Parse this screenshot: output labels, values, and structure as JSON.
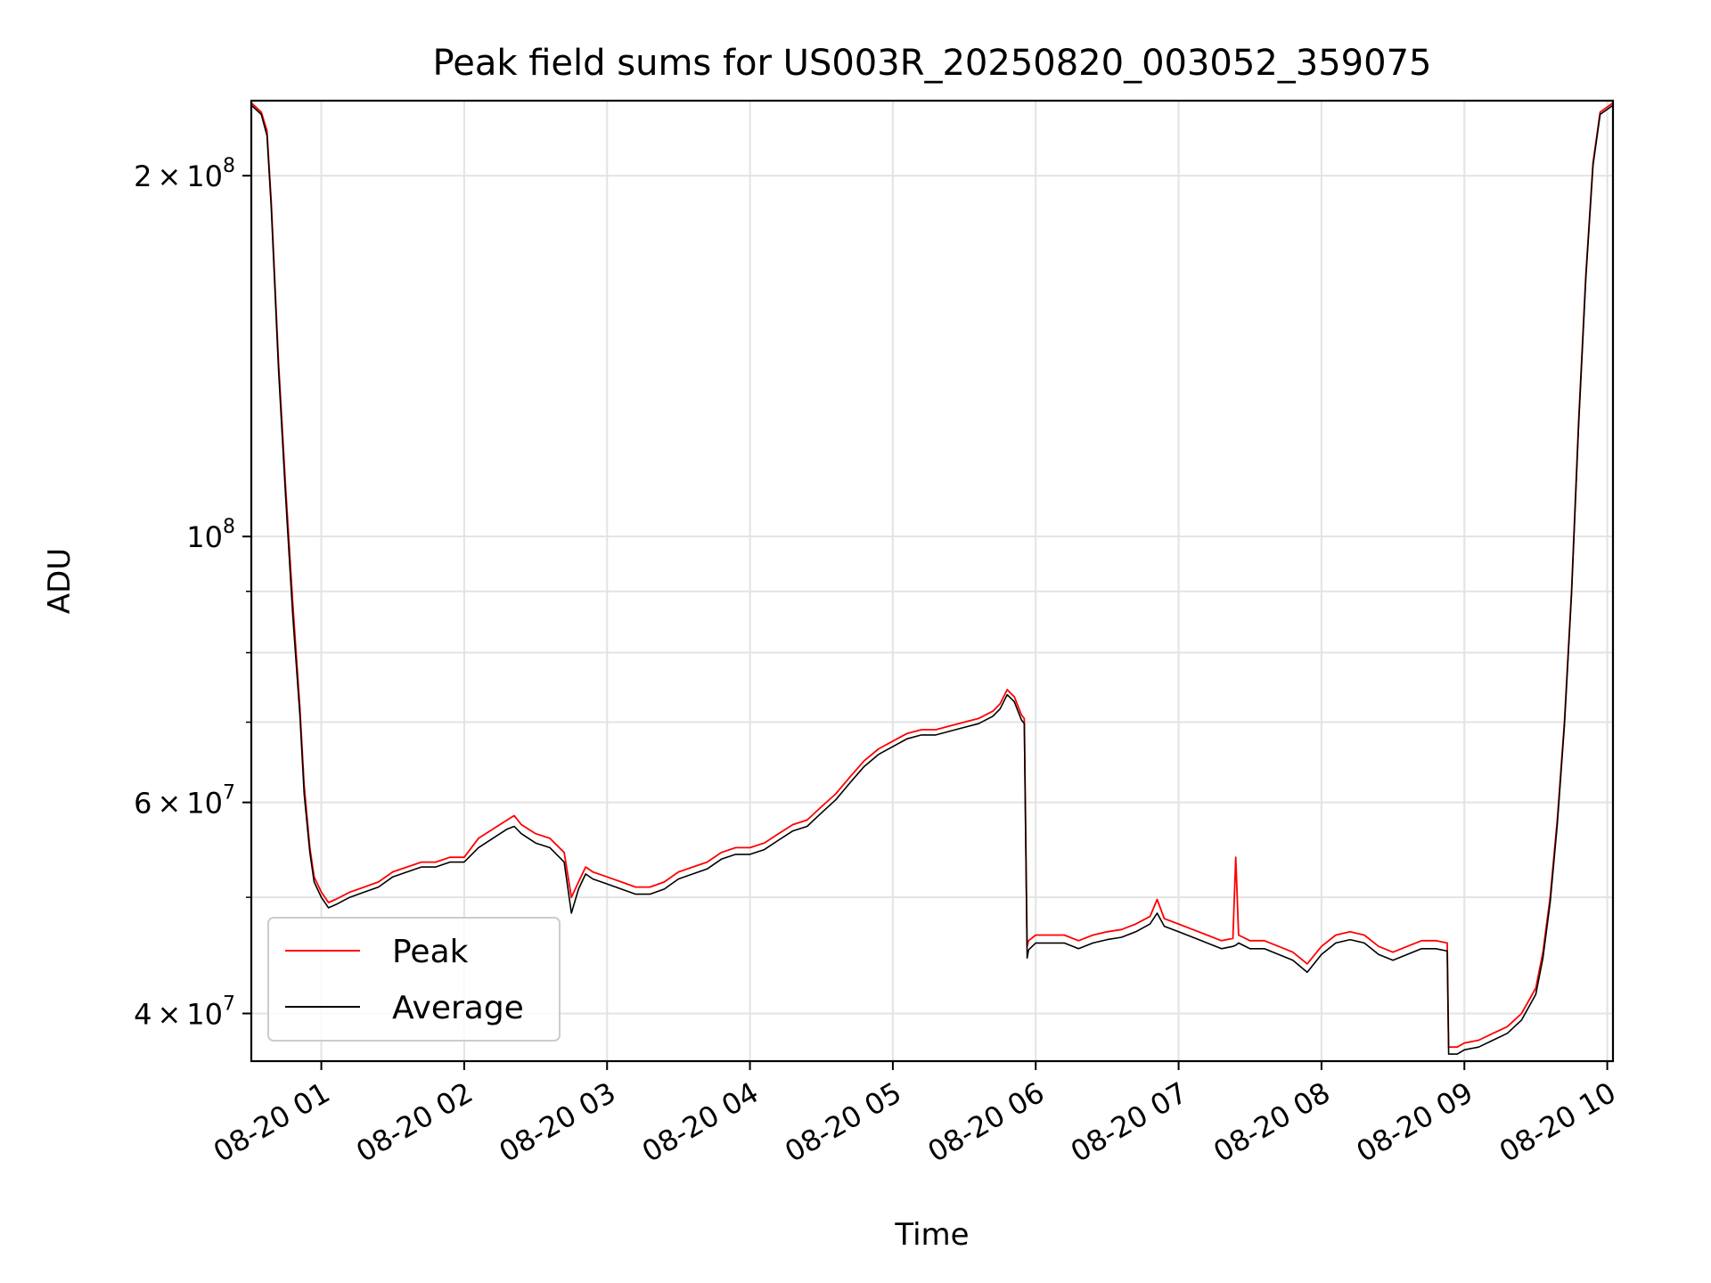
{
  "chart_data": {
    "type": "line",
    "title": "Peak field sums for US003R_20250820_003052_359075",
    "xlabel": "Time",
    "ylabel": "ADU",
    "x_unit": "hour of day on 2025-08-20",
    "xlim": [
      0.51,
      10.04
    ],
    "ylim": [
      36500000,
      231000000
    ],
    "y_scale": "log",
    "grid": true,
    "legend_position": "lower-left",
    "x_ticks": [
      {
        "value": 1,
        "label": "08-20 01"
      },
      {
        "value": 2,
        "label": "08-20 02"
      },
      {
        "value": 3,
        "label": "08-20 03"
      },
      {
        "value": 4,
        "label": "08-20 04"
      },
      {
        "value": 5,
        "label": "08-20 05"
      },
      {
        "value": 6,
        "label": "08-20 06"
      },
      {
        "value": 7,
        "label": "08-20 07"
      },
      {
        "value": 8,
        "label": "08-20 08"
      },
      {
        "value": 9,
        "label": "08-20 09"
      },
      {
        "value": 10,
        "label": "08-20 10"
      }
    ],
    "y_ticks": [
      {
        "value": 40000000,
        "base": "4",
        "exp": "7"
      },
      {
        "value": 60000000,
        "base": "6",
        "exp": "7"
      },
      {
        "value": 100000000,
        "base": "",
        "exp": "8"
      },
      {
        "value": 200000000,
        "base": "2",
        "exp": "8"
      }
    ],
    "y_minor_ticks": [
      50000000,
      70000000,
      80000000,
      90000000
    ],
    "series": [
      {
        "name": "Peak",
        "color": "#ff0000",
        "x": [
          0.51,
          0.58,
          0.62,
          0.65,
          0.7,
          0.75,
          0.8,
          0.85,
          0.88,
          0.92,
          0.95,
          1.0,
          1.05,
          1.1,
          1.2,
          1.3,
          1.4,
          1.5,
          1.6,
          1.7,
          1.8,
          1.9,
          2.0,
          2.1,
          2.2,
          2.3,
          2.35,
          2.4,
          2.5,
          2.6,
          2.7,
          2.75,
          2.8,
          2.85,
          2.9,
          3.0,
          3.1,
          3.2,
          3.3,
          3.4,
          3.5,
          3.6,
          3.7,
          3.8,
          3.9,
          4.0,
          4.1,
          4.2,
          4.3,
          4.4,
          4.5,
          4.6,
          4.7,
          4.8,
          4.9,
          5.0,
          5.1,
          5.2,
          5.3,
          5.4,
          5.5,
          5.6,
          5.7,
          5.75,
          5.8,
          5.85,
          5.9,
          5.92,
          5.94,
          5.95,
          6.0,
          6.1,
          6.2,
          6.3,
          6.4,
          6.5,
          6.6,
          6.7,
          6.8,
          6.85,
          6.9,
          7.0,
          7.1,
          7.2,
          7.3,
          7.38,
          7.4,
          7.42,
          7.5,
          7.6,
          7.7,
          7.8,
          7.9,
          8.0,
          8.1,
          8.2,
          8.3,
          8.4,
          8.5,
          8.6,
          8.7,
          8.8,
          8.88,
          8.89,
          8.95,
          9.0,
          9.1,
          9.2,
          9.3,
          9.4,
          9.5,
          9.55,
          9.6,
          9.65,
          9.7,
          9.75,
          9.8,
          9.85,
          9.9,
          9.95,
          10.04
        ],
        "y": [
          230000000,
          226000000,
          218000000,
          190000000,
          140000000,
          110000000,
          88000000,
          72000000,
          62000000,
          55000000,
          52000000,
          50500000,
          49500000,
          49800000,
          50500000,
          51000000,
          51500000,
          52500000,
          53000000,
          53500000,
          53500000,
          54000000,
          54000000,
          56000000,
          57000000,
          58000000,
          58500000,
          57500000,
          56500000,
          56000000,
          54500000,
          50000000,
          51500000,
          53000000,
          52500000,
          52000000,
          51500000,
          51000000,
          51000000,
          51500000,
          52500000,
          53000000,
          53500000,
          54500000,
          55000000,
          55000000,
          55500000,
          56500000,
          57500000,
          58000000,
          59500000,
          61000000,
          63000000,
          65000000,
          66500000,
          67500000,
          68500000,
          69000000,
          69000000,
          69500000,
          70000000,
          70500000,
          71500000,
          72500000,
          74500000,
          73500000,
          71000000,
          70500000,
          45500000,
          46000000,
          46500000,
          46500000,
          46500000,
          46000000,
          46500000,
          46800000,
          47000000,
          47500000,
          48200000,
          49800000,
          48000000,
          47500000,
          47000000,
          46500000,
          46000000,
          46200000,
          54000000,
          46500000,
          46000000,
          46000000,
          45500000,
          45000000,
          44000000,
          45500000,
          46500000,
          46800000,
          46500000,
          45500000,
          45000000,
          45500000,
          46000000,
          46000000,
          45800000,
          37500000,
          37500000,
          37800000,
          38000000,
          38500000,
          39000000,
          40000000,
          42000000,
          45000000,
          50000000,
          58000000,
          70000000,
          90000000,
          125000000,
          165000000,
          205000000,
          226000000,
          230000000
        ]
      },
      {
        "name": "Average",
        "color": "#000000",
        "x": [
          0.51,
          0.58,
          0.62,
          0.65,
          0.7,
          0.75,
          0.8,
          0.85,
          0.88,
          0.92,
          0.95,
          1.0,
          1.05,
          1.1,
          1.2,
          1.3,
          1.4,
          1.5,
          1.6,
          1.7,
          1.8,
          1.9,
          2.0,
          2.1,
          2.2,
          2.3,
          2.35,
          2.4,
          2.5,
          2.6,
          2.7,
          2.75,
          2.8,
          2.85,
          2.9,
          3.0,
          3.1,
          3.2,
          3.3,
          3.4,
          3.5,
          3.6,
          3.7,
          3.8,
          3.9,
          4.0,
          4.1,
          4.2,
          4.3,
          4.4,
          4.5,
          4.6,
          4.7,
          4.8,
          4.9,
          5.0,
          5.1,
          5.2,
          5.3,
          5.4,
          5.5,
          5.6,
          5.7,
          5.75,
          5.8,
          5.85,
          5.9,
          5.92,
          5.94,
          5.95,
          6.0,
          6.1,
          6.2,
          6.3,
          6.4,
          6.5,
          6.6,
          6.7,
          6.8,
          6.85,
          6.9,
          7.0,
          7.1,
          7.2,
          7.3,
          7.38,
          7.4,
          7.42,
          7.5,
          7.6,
          7.7,
          7.8,
          7.9,
          8.0,
          8.1,
          8.2,
          8.3,
          8.4,
          8.5,
          8.6,
          8.7,
          8.8,
          8.88,
          8.89,
          8.95,
          9.0,
          9.1,
          9.2,
          9.3,
          9.4,
          9.5,
          9.55,
          9.6,
          9.65,
          9.7,
          9.75,
          9.8,
          9.85,
          9.9,
          9.95,
          10.04
        ],
        "y": [
          229000000,
          225000000,
          216000000,
          188000000,
          138000000,
          108000000,
          86000000,
          71000000,
          61000000,
          54500000,
          51500000,
          50000000,
          49000000,
          49300000,
          50000000,
          50500000,
          51000000,
          52000000,
          52500000,
          53000000,
          53000000,
          53500000,
          53500000,
          55000000,
          56000000,
          57000000,
          57300000,
          56500000,
          55500000,
          55000000,
          53500000,
          48500000,
          50800000,
          52300000,
          51800000,
          51300000,
          50800000,
          50300000,
          50300000,
          50800000,
          51800000,
          52300000,
          52800000,
          53800000,
          54300000,
          54300000,
          54800000,
          55800000,
          56800000,
          57300000,
          58800000,
          60300000,
          62300000,
          64300000,
          65800000,
          66800000,
          67800000,
          68300000,
          68300000,
          68800000,
          69300000,
          69800000,
          70800000,
          71800000,
          73800000,
          72800000,
          70300000,
          69800000,
          44500000,
          45200000,
          45800000,
          45800000,
          45800000,
          45300000,
          45800000,
          46100000,
          46300000,
          46800000,
          47500000,
          48500000,
          47300000,
          46800000,
          46300000,
          45800000,
          45300000,
          45500000,
          45600000,
          45800000,
          45300000,
          45300000,
          44800000,
          44300000,
          43300000,
          44800000,
          45800000,
          46100000,
          45800000,
          44800000,
          44300000,
          44800000,
          45300000,
          45300000,
          45100000,
          37000000,
          37000000,
          37300000,
          37500000,
          38000000,
          38500000,
          39500000,
          41500000,
          44500000,
          49500000,
          57500000,
          69500000,
          89500000,
          124000000,
          164000000,
          204000000,
          225000000,
          229000000
        ]
      }
    ]
  }
}
